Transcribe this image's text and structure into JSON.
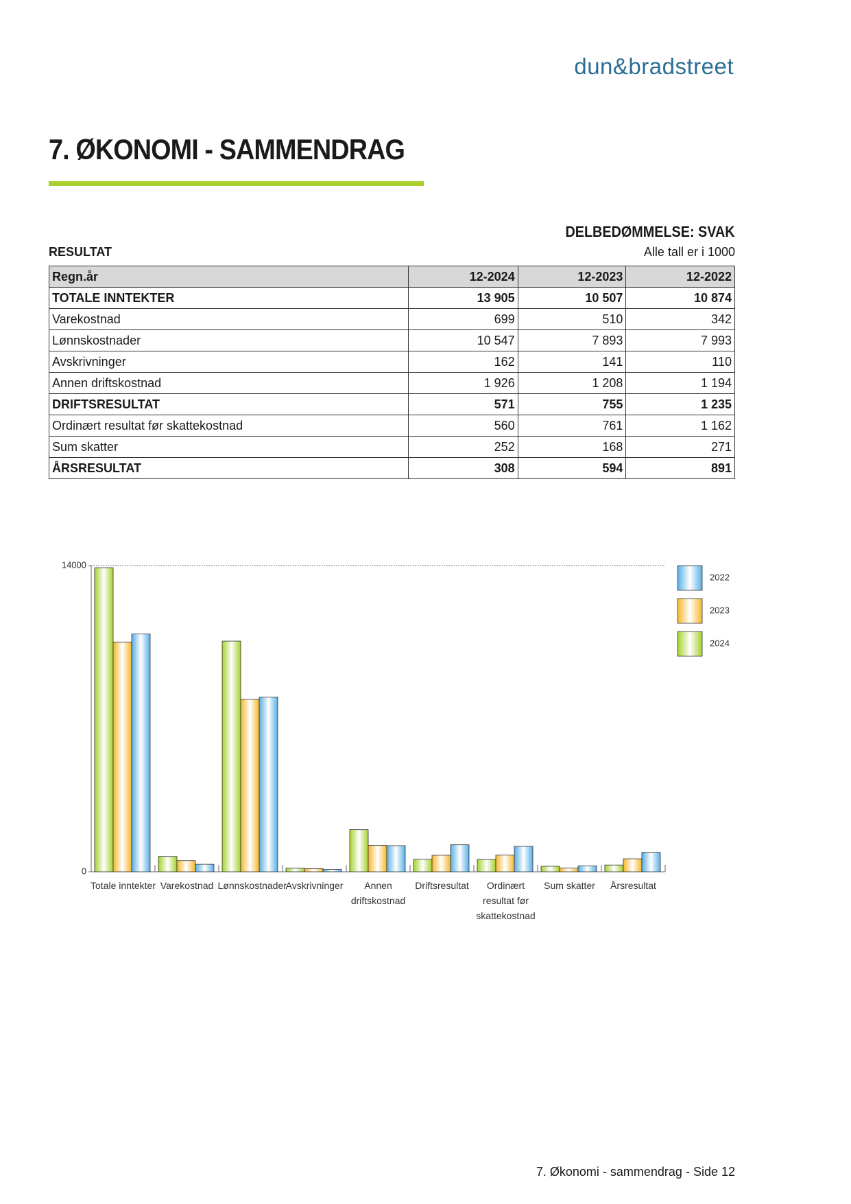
{
  "header": {
    "logo": "dun&bradstreet",
    "title": "7. ØKONOMI - SAMMENDRAG"
  },
  "rating": "DELBEDØMMELSE: SVAK",
  "section": "RESULTAT",
  "unit_note": "Alle tall er i 1000",
  "table": {
    "header": [
      "Regn.år",
      "12-2024",
      "12-2023",
      "12-2022"
    ],
    "rows": [
      {
        "cells": [
          "TOTALE INNTEKTER",
          "13 905",
          "10 507",
          "10 874"
        ],
        "bold": true
      },
      {
        "cells": [
          "Varekostnad",
          "699",
          "510",
          "342"
        ],
        "bold": false
      },
      {
        "cells": [
          "Lønnskostnader",
          "10 547",
          "7 893",
          "7 993"
        ],
        "bold": false
      },
      {
        "cells": [
          "Avskrivninger",
          "162",
          "141",
          "110"
        ],
        "bold": false
      },
      {
        "cells": [
          "Annen driftskostnad",
          "1 926",
          "1 208",
          "1 194"
        ],
        "bold": false
      },
      {
        "cells": [
          "DRIFTSRESULTAT",
          "571",
          "755",
          "1 235"
        ],
        "bold": true
      },
      {
        "cells": [
          "Ordinært resultat før skattekostnad",
          "560",
          "761",
          "1 162"
        ],
        "bold": false
      },
      {
        "cells": [
          "Sum skatter",
          "252",
          "168",
          "271"
        ],
        "bold": false
      },
      {
        "cells": [
          "ÅRSRESULTAT",
          "308",
          "594",
          "891"
        ],
        "bold": true
      }
    ]
  },
  "chart_data": {
    "type": "bar",
    "categories": [
      "Totale inntekter",
      "Varekostnad",
      "Lønnskostnader",
      "Avskrivninger",
      "Annen driftskostnad",
      "Driftsresultat",
      "Ordinært resultat før skattekostnad",
      "Sum skatter",
      "Årsresultat"
    ],
    "series": [
      {
        "name": "2024",
        "color": "#a6d12b",
        "values": [
          13905,
          699,
          10547,
          162,
          1926,
          571,
          560,
          252,
          308
        ]
      },
      {
        "name": "2023",
        "color": "#f5b72a",
        "values": [
          10507,
          510,
          7893,
          141,
          1208,
          755,
          761,
          168,
          594
        ]
      },
      {
        "name": "2022",
        "color": "#58aee6",
        "values": [
          10874,
          342,
          7993,
          110,
          1194,
          1235,
          1162,
          271,
          891
        ]
      }
    ],
    "ylim": [
      0,
      14000
    ],
    "yticks": [
      0,
      14000
    ],
    "grid": true,
    "legend": "top-right"
  },
  "footer": "7. Økonomi - sammendrag - Side 12"
}
